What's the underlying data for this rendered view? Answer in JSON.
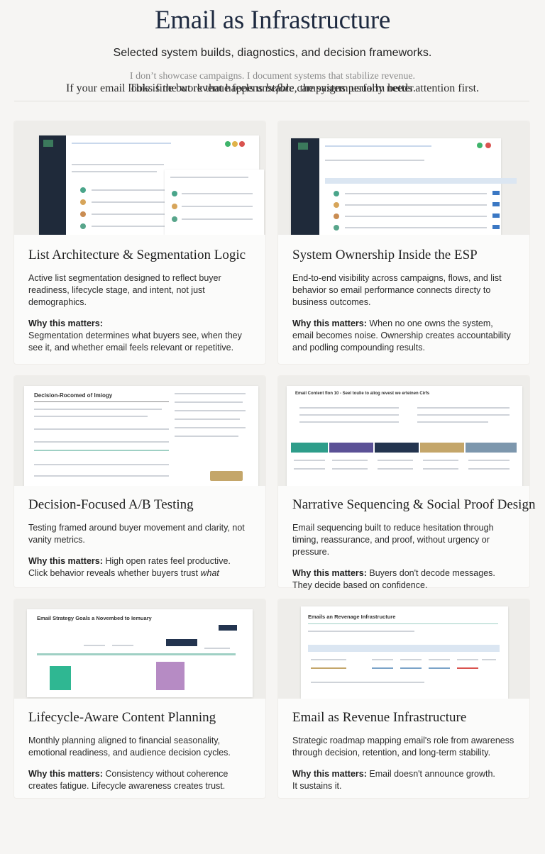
{
  "header": {
    "title": "Email as Infrastructure",
    "subtitle": "Selected system builds, diagnostics, and decision frameworks.",
    "tagline": "I don’t showcase campaigns. I document systems that stabilize revenue."
  },
  "why_label": "Why this matters:",
  "cards": [
    {
      "title": "List Architecture & Segmentation Logic",
      "description": "Active list segmentation designed to reflect buyer readiness, lifecycle stage, and intent, not just demographics.",
      "why": "Segmentation determines what buyers see, when they see it, and whether email feels relevant or repetitive."
    },
    {
      "title": "System Ownership Inside the ESP",
      "description": "End-to-end visibility across campaigns, flows, and list behavior so email performance connects directy to business outcomes.",
      "why": "When no one owns the system, email becomes noise. Ownership creates accountability and podling compounding results."
    },
    {
      "title": "Decision-Focused A/B Testing",
      "description": "Testing framed around buyer movement and clarity, not vanity metrics.",
      "why": "High open rates feel productive. Click behavior reveals whether buyers trust",
      "why_emphasis": "what",
      "thumb_title": "Decision-Rocomed of Imiogy"
    },
    {
      "title": "Narrative Sequencing & Social Proof Design",
      "description": "Email sequencing built to reduce hesitation through timing, reassurance, and proof, without urgency or pressure.",
      "why": "Buyers don't decode messages. They decide based on confidence.",
      "thumb_title": "Email Content flon 10 - Seel toulie to aliog revest we erteinen Cirfs"
    },
    {
      "title": "Lifecycle-Aware Content Planning",
      "description": "Monthly planning aligned to financial seasonality, emotional readiness, and audience decision cycles.",
      "why": "Consistency without coherence creates fatigue. Lifecycle awareness creates trust.",
      "thumb_title": "Email Strategy Goals a Novembed to Iemuary"
    },
    {
      "title": "Email as Revenue Infrastructure",
      "description": "Strategic roadmap mapping email's role from awareness through decision, retention, and long-term stability.",
      "why": "Email doesn't announce growth.",
      "why_line2": "It sustains it.",
      "thumb_title": "Emails an Revenage Infrastructure"
    }
  ],
  "footer": {
    "line1_a": "This is the  work that happens",
    "line1_em": "before",
    "line1_b": "campaigns perform better.",
    "line2": "If your email looks fine but revenue feels unstable, the system usually needs attention first."
  },
  "colors": {
    "title": "#1e2a40",
    "navy": "#1f2a3a",
    "teal": "#2e9d8a",
    "purple": "#5b5196",
    "gold": "#c4a66a",
    "steel": "#7d97ad"
  }
}
